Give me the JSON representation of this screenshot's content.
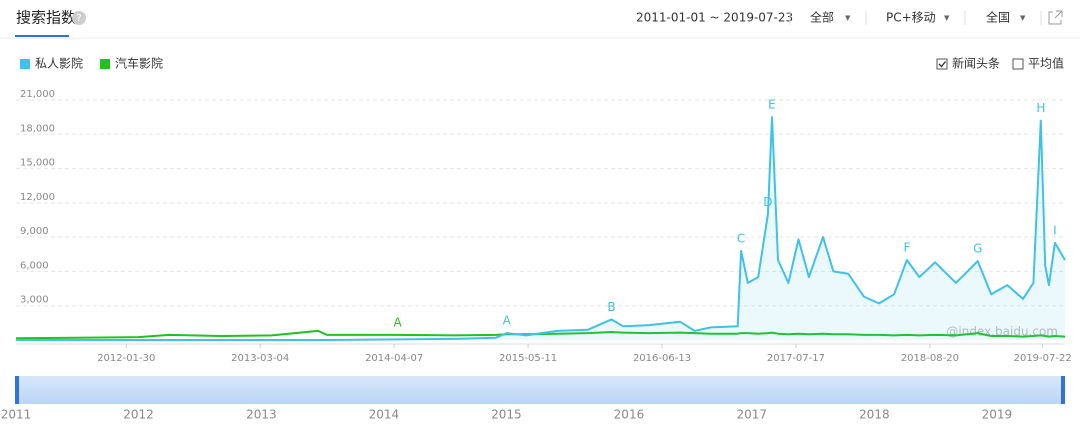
{
  "header": {
    "title": "搜索指数",
    "date_range": "2011-01-01 ~ 2019-07-23",
    "scope": "全部",
    "device": "PC+移动",
    "region": "全国"
  },
  "options": [
    {
      "label": "新闻头条",
      "checked": true
    },
    {
      "label": "平均值",
      "checked": false
    }
  ],
  "chart_data": {
    "type": "line",
    "x": [
      "2011-01-01",
      "2011-07-01",
      "2012-01-01",
      "2012-04-01",
      "2012-09-01",
      "2013-02-01",
      "2013-06-19",
      "2013-07-15",
      "2014-02-11",
      "2014-08-01",
      "2014-12-01",
      "2015-01-02",
      "2015-03-01",
      "2015-06-01",
      "2015-09-01",
      "2015-11-10",
      "2015-12-15",
      "2016-03-01",
      "2016-06-01",
      "2016-07-15",
      "2016-09-01",
      "2016-11-20",
      "2016-11-30",
      "2016-12-20",
      "2017-01-20",
      "2017-02-18",
      "2017-03-02",
      "2017-03-20",
      "2017-04-20",
      "2017-05-20",
      "2017-06-20",
      "2017-08-01",
      "2017-09-01",
      "2017-10-15",
      "2017-12-01",
      "2018-01-15",
      "2018-03-01",
      "2018-04-08",
      "2018-05-15",
      "2018-07-01",
      "2018-09-01",
      "2018-11-05",
      "2018-12-15",
      "2019-02-01",
      "2019-03-20",
      "2019-04-20",
      "2019-05-12",
      "2019-05-25",
      "2019-06-05",
      "2019-06-23",
      "2019-07-23"
    ],
    "series": [
      {
        "name": "私人影院",
        "color": "#3fc1e9",
        "area": true,
        "values": [
          0,
          0,
          0,
          0,
          0,
          0,
          0,
          0,
          50,
          100,
          200,
          600,
          400,
          800,
          900,
          1800,
          1200,
          1300,
          1600,
          800,
          1100,
          1200,
          7800,
          5000,
          5500,
          11000,
          19500,
          7000,
          5000,
          8800,
          5500,
          9000,
          6000,
          5800,
          3800,
          3200,
          4000,
          7000,
          5500,
          6800,
          5000,
          6900,
          4000,
          4800,
          3600,
          5000,
          19200,
          6500,
          4800,
          8500,
          7000
        ]
      },
      {
        "name": "汽车影院",
        "color": "#1fc21f",
        "area": false,
        "values": [
          150,
          200,
          250,
          450,
          350,
          400,
          800,
          450,
          450,
          400,
          450,
          500,
          500,
          550,
          600,
          700,
          650,
          600,
          650,
          600,
          550,
          550,
          600,
          600,
          550,
          600,
          650,
          550,
          500,
          550,
          500,
          550,
          500,
          500,
          450,
          450,
          400,
          450,
          400,
          450,
          400,
          600,
          350,
          350,
          300,
          350,
          400,
          350,
          300,
          350,
          300
        ]
      }
    ],
    "annotations": [
      {
        "label": "A",
        "x": "2014-02-11",
        "color": "#1fc21f"
      },
      {
        "label": "A",
        "x": "2015-01-02",
        "color": "#3fc1e9"
      },
      {
        "label": "B",
        "x": "2015-11-10",
        "color": "#3fc1e9"
      },
      {
        "label": "C",
        "x": "2016-11-30",
        "color": "#3fc1e9"
      },
      {
        "label": "D",
        "x": "2017-02-18",
        "color": "#3fc1e9"
      },
      {
        "label": "E",
        "x": "2017-03-02",
        "color": "#3fc1e9"
      },
      {
        "label": "F",
        "x": "2018-04-08",
        "color": "#3fc1e9"
      },
      {
        "label": "G",
        "x": "2018-11-05",
        "color": "#3fc1e9"
      },
      {
        "label": "H",
        "x": "2019-05-12",
        "color": "#3fc1e9"
      },
      {
        "label": "I",
        "x": "2019-06-23",
        "color": "#3fc1e9"
      }
    ],
    "xlim": [
      "2011-01-01",
      "2019-07-23"
    ],
    "xticks": [
      "2012-01-30",
      "2013-03-04",
      "2014-04-07",
      "2015-05-11",
      "2016-06-13",
      "2017-07-17",
      "2018-08-20",
      "2019-07-22"
    ],
    "ylim": [
      0,
      21000
    ],
    "yticks": [
      {
        "value": 3000,
        "label": "3,000"
      },
      {
        "value": 6000,
        "label": "6,000"
      },
      {
        "value": 9000,
        "label": "9,000"
      },
      {
        "value": 12000,
        "label": "12,000"
      },
      {
        "value": 15000,
        "label": "15,000"
      },
      {
        "value": 18000,
        "label": "18,000"
      },
      {
        "value": 21000,
        "label": "21,000"
      }
    ],
    "grid": true,
    "watermark": "@index.baidu.com",
    "navigator_ticks": [
      2011,
      2012,
      2013,
      2014,
      2015,
      2016,
      2017,
      2018,
      2019
    ]
  }
}
